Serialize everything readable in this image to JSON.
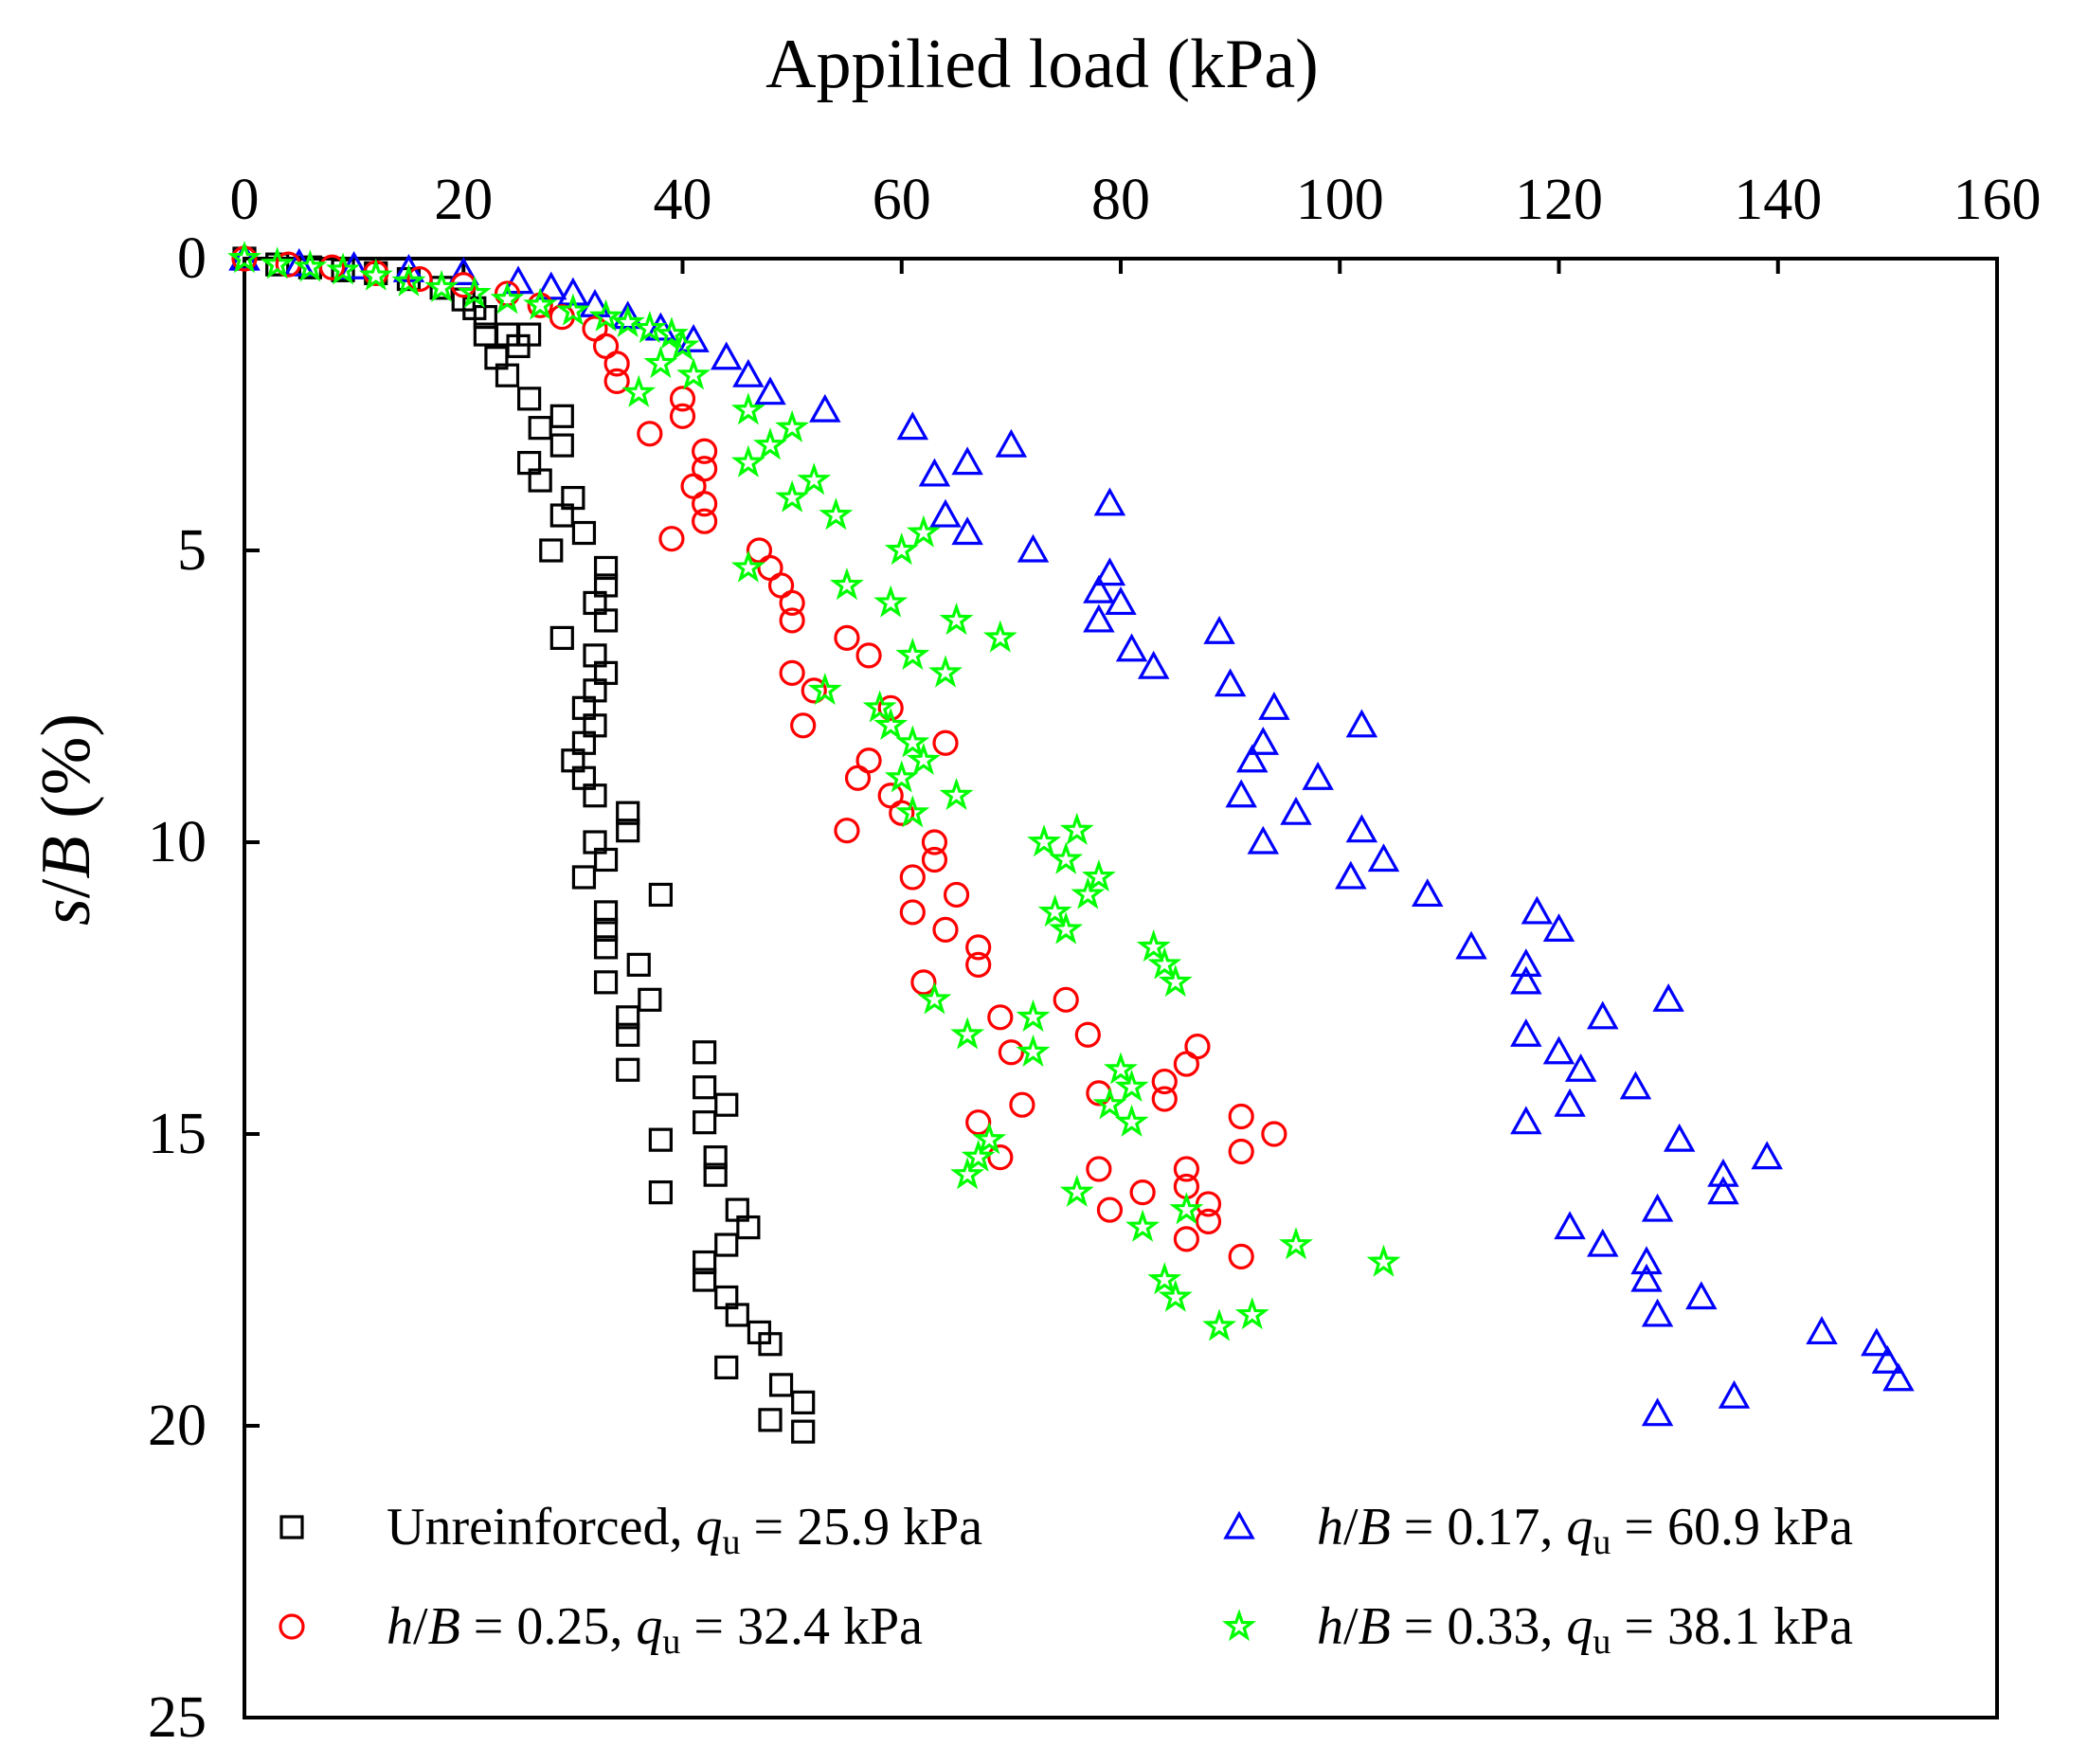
{
  "chart_data": {
    "type": "scatter",
    "title": "",
    "xlabel": "Appilied load (kPa)",
    "ylabel": "s/B (%)",
    "x_axis_position": "top",
    "y_axis_inverted": true,
    "xlim": [
      0,
      160
    ],
    "ylim": [
      0,
      25
    ],
    "xticks": [
      0,
      20,
      40,
      60,
      80,
      100,
      120,
      140,
      160
    ],
    "yticks": [
      0,
      5,
      10,
      15,
      20,
      25
    ],
    "legend_position": "bottom",
    "series": [
      {
        "name": "Unreinforced",
        "legend": {
          "label_prefix": "Unreinforced, ",
          "q_symbol": "q",
          "q_sub": "u",
          "q_value": " = 25.9 kPa"
        },
        "marker": "square",
        "color": "#000000",
        "points": [
          [
            0,
            0
          ],
          [
            3,
            0.1
          ],
          [
            6,
            0.15
          ],
          [
            9,
            0.2
          ],
          [
            12,
            0.25
          ],
          [
            15,
            0.35
          ],
          [
            18,
            0.5
          ],
          [
            20,
            0.7
          ],
          [
            21,
            0.85
          ],
          [
            22,
            1.0
          ],
          [
            24,
            1.3
          ],
          [
            25,
            1.5
          ],
          [
            26,
            1.3
          ],
          [
            22,
            1.3
          ],
          [
            23,
            1.7
          ],
          [
            24,
            2.0
          ],
          [
            26,
            2.4
          ],
          [
            29,
            2.7
          ],
          [
            27,
            2.9
          ],
          [
            29,
            3.2
          ],
          [
            26,
            3.5
          ],
          [
            27,
            3.8
          ],
          [
            30,
            4.1
          ],
          [
            29,
            4.4
          ],
          [
            31,
            4.7
          ],
          [
            28,
            5.0
          ],
          [
            33,
            5.3
          ],
          [
            33,
            5.6
          ],
          [
            32,
            5.9
          ],
          [
            33,
            6.2
          ],
          [
            29,
            6.5
          ],
          [
            32,
            6.8
          ],
          [
            33,
            7.1
          ],
          [
            32,
            7.4
          ],
          [
            31,
            7.7
          ],
          [
            32,
            8.0
          ],
          [
            31,
            8.3
          ],
          [
            30,
            8.6
          ],
          [
            31,
            8.9
          ],
          [
            32,
            9.2
          ],
          [
            35,
            9.5
          ],
          [
            35,
            9.8
          ],
          [
            32,
            10.0
          ],
          [
            33,
            10.3
          ],
          [
            31,
            10.6
          ],
          [
            38,
            10.9
          ],
          [
            33,
            11.2
          ],
          [
            33,
            11.5
          ],
          [
            33,
            11.8
          ],
          [
            36,
            12.1
          ],
          [
            33,
            12.4
          ],
          [
            37,
            12.7
          ],
          [
            35,
            13.0
          ],
          [
            35,
            13.3
          ],
          [
            42,
            13.6
          ],
          [
            35,
            13.9
          ],
          [
            42,
            14.2
          ],
          [
            44,
            14.5
          ],
          [
            42,
            14.8
          ],
          [
            38,
            15.1
          ],
          [
            43,
            15.4
          ],
          [
            43,
            15.7
          ],
          [
            38,
            16.0
          ],
          [
            45,
            16.3
          ],
          [
            46,
            16.6
          ],
          [
            44,
            16.9
          ],
          [
            42,
            17.2
          ],
          [
            42,
            17.5
          ],
          [
            44,
            17.8
          ],
          [
            45,
            18.1
          ],
          [
            47,
            18.4
          ],
          [
            48,
            18.6
          ],
          [
            44,
            19.0
          ],
          [
            49,
            19.3
          ],
          [
            51,
            19.6
          ],
          [
            48,
            19.9
          ],
          [
            51,
            20.1
          ]
        ]
      },
      {
        "name": "h/B = 0.17",
        "legend": {
          "label_prefix": "",
          "hb": "h/B",
          "hb_value": " = 0.17, ",
          "q_symbol": "q",
          "q_sub": "u",
          "q_value": " = 60.9 kPa"
        },
        "marker": "triangle",
        "color": "#0000ff",
        "points": [
          [
            0,
            0
          ],
          [
            5,
            0.1
          ],
          [
            10,
            0.15
          ],
          [
            15,
            0.2
          ],
          [
            20,
            0.25
          ],
          [
            25,
            0.4
          ],
          [
            28,
            0.5
          ],
          [
            30,
            0.6
          ],
          [
            32,
            0.8
          ],
          [
            35,
            1.0
          ],
          [
            38,
            1.2
          ],
          [
            41,
            1.4
          ],
          [
            44,
            1.7
          ],
          [
            46,
            2.0
          ],
          [
            48,
            2.3
          ],
          [
            53,
            2.6
          ],
          [
            61,
            2.9
          ],
          [
            63,
            3.7
          ],
          [
            66,
            3.5
          ],
          [
            70,
            3.2
          ],
          [
            79,
            4.2
          ],
          [
            64,
            4.4
          ],
          [
            66,
            4.7
          ],
          [
            72,
            5.0
          ],
          [
            79,
            5.4
          ],
          [
            78,
            5.7
          ],
          [
            80,
            5.9
          ],
          [
            78,
            6.2
          ],
          [
            89,
            6.4
          ],
          [
            81,
            6.7
          ],
          [
            83,
            7.0
          ],
          [
            90,
            7.3
          ],
          [
            94,
            7.7
          ],
          [
            102,
            8.0
          ],
          [
            93,
            8.3
          ],
          [
            92,
            8.6
          ],
          [
            98,
            8.9
          ],
          [
            91,
            9.2
          ],
          [
            96,
            9.5
          ],
          [
            102,
            9.8
          ],
          [
            93,
            10.0
          ],
          [
            104,
            10.3
          ],
          [
            101,
            10.6
          ],
          [
            108,
            10.9
          ],
          [
            118,
            11.2
          ],
          [
            120,
            11.5
          ],
          [
            112,
            11.8
          ],
          [
            117,
            12.1
          ],
          [
            117,
            12.4
          ],
          [
            130,
            12.7
          ],
          [
            124,
            13.0
          ],
          [
            117,
            13.3
          ],
          [
            120,
            13.6
          ],
          [
            122,
            13.9
          ],
          [
            127,
            14.2
          ],
          [
            121,
            14.5
          ],
          [
            117,
            14.8
          ],
          [
            131,
            15.1
          ],
          [
            139,
            15.4
          ],
          [
            135,
            15.7
          ],
          [
            135,
            16.0
          ],
          [
            129,
            16.3
          ],
          [
            121,
            16.6
          ],
          [
            124,
            16.9
          ],
          [
            128,
            17.2
          ],
          [
            128,
            17.5
          ],
          [
            133,
            17.8
          ],
          [
            129,
            18.1
          ],
          [
            144,
            18.4
          ],
          [
            149,
            18.6
          ],
          [
            150,
            18.9
          ],
          [
            151,
            19.2
          ],
          [
            136,
            19.5
          ],
          [
            129,
            19.8
          ]
        ]
      },
      {
        "name": "h/B = 0.25",
        "legend": {
          "label_prefix": "",
          "hb": "h/B",
          "hb_value": " = 0.25, ",
          "q_symbol": "q",
          "q_sub": "u",
          "q_value": " = 32.4 kPa"
        },
        "marker": "circle",
        "color": "#ff0000",
        "points": [
          [
            0,
            0
          ],
          [
            4,
            0.1
          ],
          [
            8,
            0.15
          ],
          [
            12,
            0.25
          ],
          [
            16,
            0.35
          ],
          [
            20,
            0.45
          ],
          [
            24,
            0.6
          ],
          [
            27,
            0.8
          ],
          [
            29,
            1.0
          ],
          [
            32,
            1.2
          ],
          [
            33,
            1.5
          ],
          [
            34,
            1.8
          ],
          [
            34,
            2.1
          ],
          [
            40,
            2.4
          ],
          [
            40,
            2.7
          ],
          [
            37,
            3.0
          ],
          [
            42,
            3.3
          ],
          [
            42,
            3.6
          ],
          [
            41,
            3.9
          ],
          [
            42,
            4.2
          ],
          [
            42,
            4.5
          ],
          [
            39,
            4.8
          ],
          [
            47,
            5.0
          ],
          [
            48,
            5.3
          ],
          [
            49,
            5.6
          ],
          [
            50,
            5.9
          ],
          [
            50,
            6.2
          ],
          [
            55,
            6.5
          ],
          [
            57,
            6.8
          ],
          [
            50,
            7.1
          ],
          [
            52,
            7.4
          ],
          [
            59,
            7.7
          ],
          [
            51,
            8.0
          ],
          [
            64,
            8.3
          ],
          [
            57,
            8.6
          ],
          [
            56,
            8.9
          ],
          [
            59,
            9.2
          ],
          [
            60,
            9.5
          ],
          [
            55,
            9.8
          ],
          [
            63,
            10.0
          ],
          [
            63,
            10.3
          ],
          [
            61,
            10.6
          ],
          [
            65,
            10.9
          ],
          [
            61,
            11.2
          ],
          [
            64,
            11.5
          ],
          [
            67,
            11.8
          ],
          [
            67,
            12.1
          ],
          [
            62,
            12.4
          ],
          [
            75,
            12.7
          ],
          [
            69,
            13.0
          ],
          [
            77,
            13.3
          ],
          [
            70,
            13.6
          ],
          [
            86,
            13.8
          ],
          [
            84,
            14.1
          ],
          [
            78,
            14.3
          ],
          [
            71,
            14.5
          ],
          [
            67,
            14.8
          ],
          [
            91,
            14.7
          ],
          [
            94,
            15.0
          ],
          [
            91,
            15.3
          ],
          [
            69,
            15.4
          ],
          [
            78,
            15.6
          ],
          [
            86,
            15.6
          ],
          [
            86,
            15.9
          ],
          [
            82,
            16.0
          ],
          [
            79,
            16.3
          ],
          [
            88,
            16.2
          ],
          [
            88,
            16.5
          ],
          [
            86,
            16.8
          ],
          [
            91,
            17.1
          ],
          [
            87,
            13.5
          ],
          [
            84,
            14.4
          ]
        ]
      },
      {
        "name": "h/B = 0.33",
        "legend": {
          "label_prefix": "",
          "hb": "h/B",
          "hb_value": " = 0.33, ",
          "q_symbol": "q",
          "q_sub": "u",
          "q_value": " = 38.1 kPa"
        },
        "marker": "star",
        "color": "#00ff00",
        "points": [
          [
            0,
            0
          ],
          [
            3,
            0.1
          ],
          [
            6,
            0.15
          ],
          [
            9,
            0.2
          ],
          [
            12,
            0.3
          ],
          [
            15,
            0.4
          ],
          [
            18,
            0.5
          ],
          [
            21,
            0.6
          ],
          [
            24,
            0.7
          ],
          [
            27,
            0.8
          ],
          [
            30,
            0.9
          ],
          [
            33,
            1.0
          ],
          [
            35,
            1.1
          ],
          [
            37,
            1.2
          ],
          [
            39,
            1.3
          ],
          [
            40,
            1.5
          ],
          [
            38,
            1.8
          ],
          [
            41,
            2.0
          ],
          [
            36,
            2.3
          ],
          [
            46,
            2.6
          ],
          [
            50,
            2.9
          ],
          [
            48,
            3.2
          ],
          [
            46,
            3.5
          ],
          [
            52,
            3.8
          ],
          [
            50,
            4.1
          ],
          [
            54,
            4.4
          ],
          [
            62,
            4.7
          ],
          [
            60,
            5.0
          ],
          [
            46,
            5.3
          ],
          [
            55,
            5.6
          ],
          [
            59,
            5.9
          ],
          [
            65,
            6.2
          ],
          [
            69,
            6.5
          ],
          [
            61,
            6.8
          ],
          [
            64,
            7.1
          ],
          [
            53,
            7.4
          ],
          [
            58,
            7.7
          ],
          [
            59,
            8.0
          ],
          [
            61,
            8.3
          ],
          [
            62,
            8.6
          ],
          [
            60,
            8.9
          ],
          [
            65,
            9.2
          ],
          [
            61,
            9.5
          ],
          [
            76,
            9.8
          ],
          [
            73,
            10.0
          ],
          [
            75,
            10.3
          ],
          [
            78,
            10.6
          ],
          [
            77,
            10.9
          ],
          [
            74,
            11.2
          ],
          [
            75,
            11.5
          ],
          [
            83,
            11.8
          ],
          [
            84,
            12.1
          ],
          [
            85,
            12.4
          ],
          [
            63,
            12.7
          ],
          [
            72,
            13.0
          ],
          [
            66,
            13.3
          ],
          [
            72,
            13.6
          ],
          [
            80,
            13.9
          ],
          [
            81,
            14.2
          ],
          [
            79,
            14.5
          ],
          [
            81,
            14.8
          ],
          [
            68,
            15.1
          ],
          [
            67,
            15.4
          ],
          [
            66,
            15.7
          ],
          [
            76,
            16.0
          ],
          [
            86,
            16.3
          ],
          [
            82,
            16.6
          ],
          [
            96,
            16.9
          ],
          [
            104,
            17.2
          ],
          [
            84,
            17.5
          ],
          [
            85,
            17.8
          ],
          [
            92,
            18.1
          ],
          [
            89,
            18.3
          ]
        ]
      }
    ]
  }
}
